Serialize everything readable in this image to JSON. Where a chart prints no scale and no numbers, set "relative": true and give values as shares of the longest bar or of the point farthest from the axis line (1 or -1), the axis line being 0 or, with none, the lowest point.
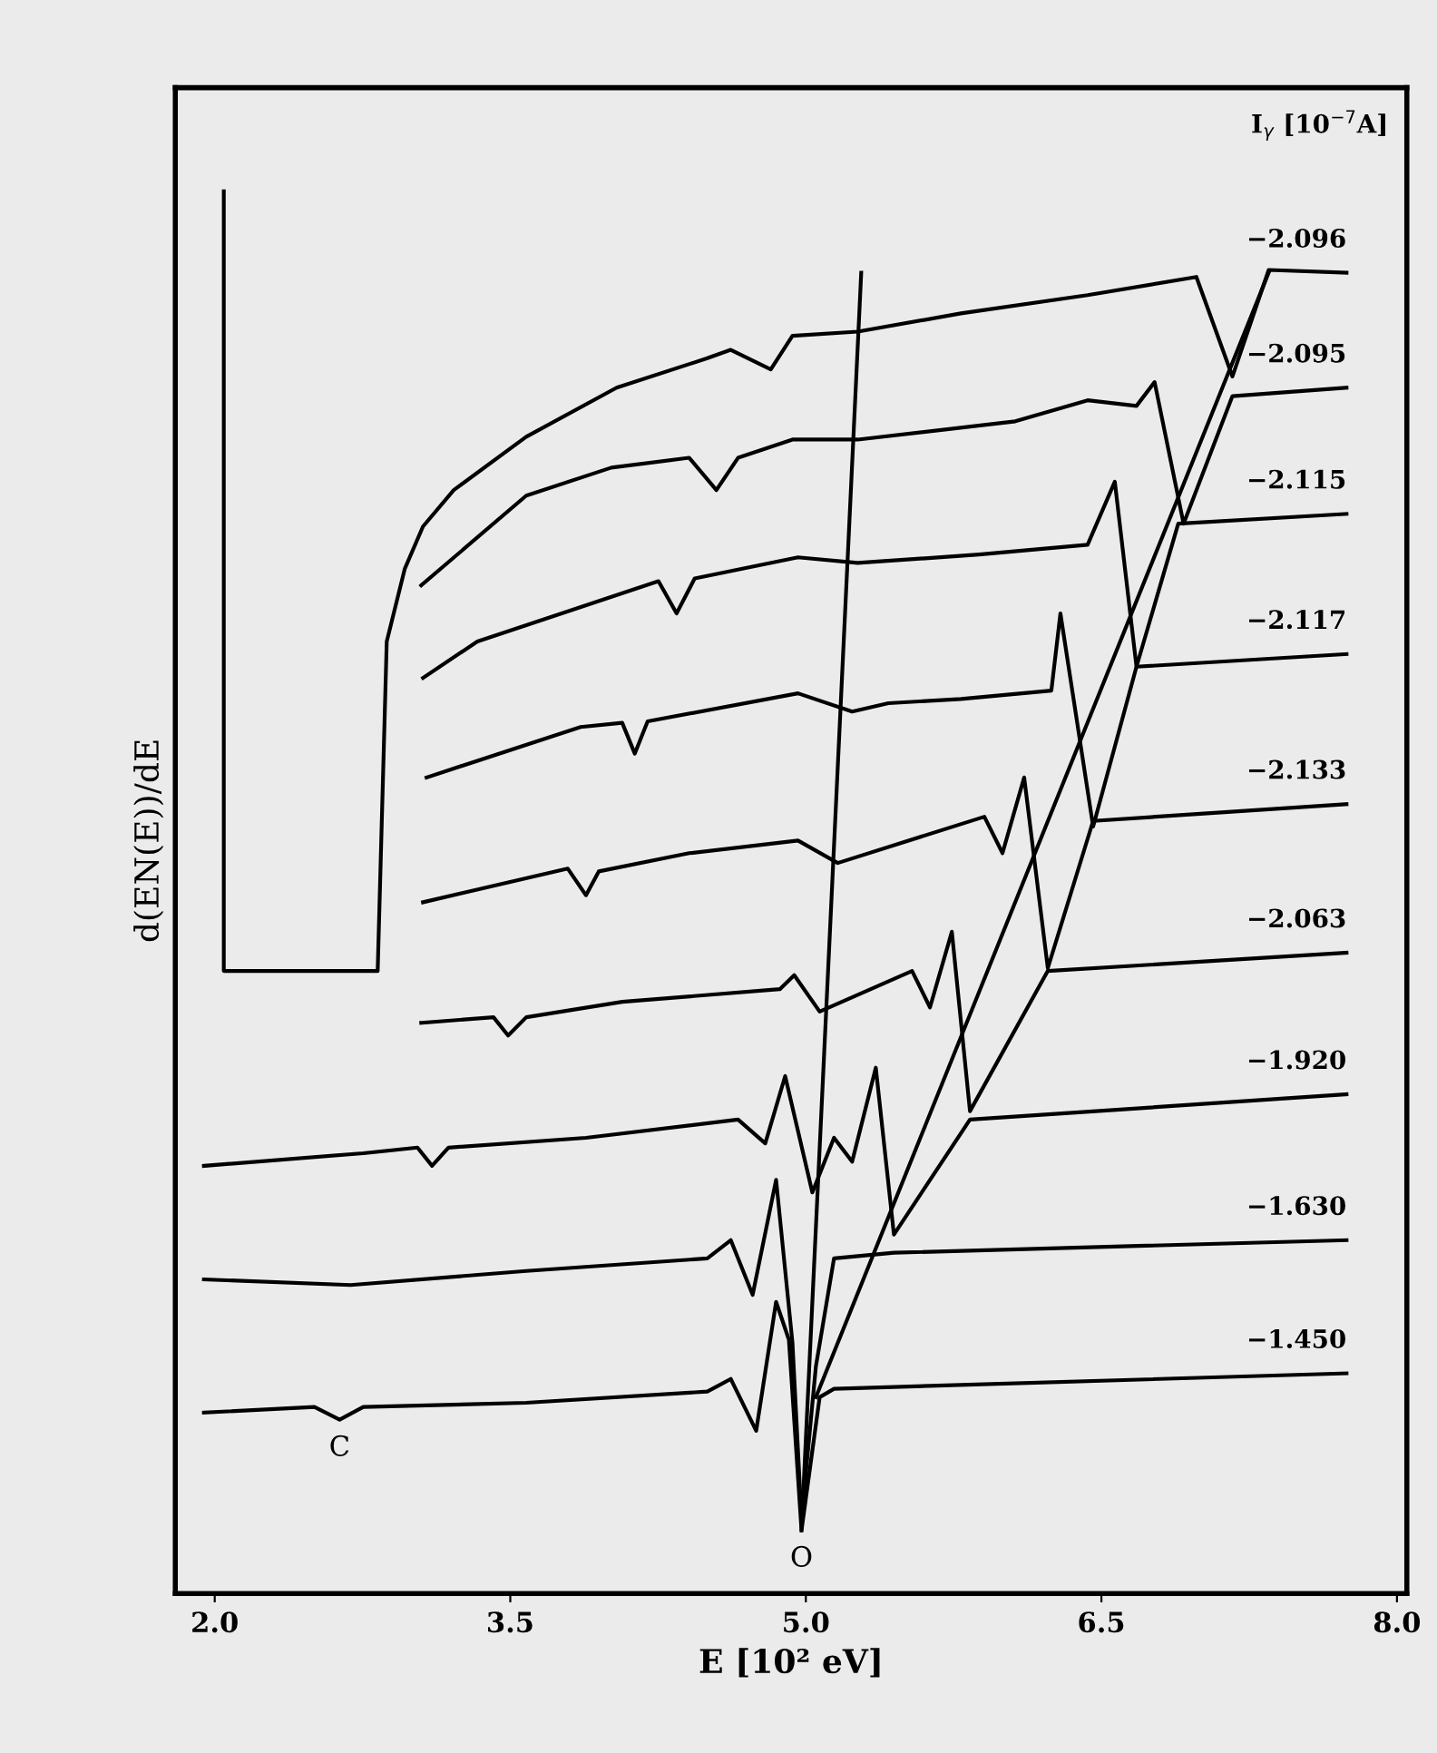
{
  "chart_data": {
    "type": "line",
    "relative": true,
    "xlabel": "E [10² eV]",
    "ylabel": "d(EN(E))/dE",
    "legend_title": "I$_{γ}$ [10$^{−7}$A]",
    "legend": false,
    "grid": false,
    "marker": "none",
    "line_style": "solid",
    "tick_labels": "x",
    "xlim": [
      1.8,
      8.05
    ],
    "xticks": [
      {
        "value": 2,
        "label": "2.0"
      },
      {
        "value": 3.5,
        "label": "3.5"
      },
      {
        "value": 5,
        "label": "5.0"
      },
      {
        "value": 6.5,
        "label": "6.5"
      },
      {
        "value": 8,
        "label": "8.0"
      }
    ],
    "series": [
      {
        "name": "−2.096",
        "color": "#000000",
        "x": [
          2.046,
          2.046,
          2.827,
          2.873,
          2.965,
          3.057,
          3.213,
          3.581,
          4.04,
          4.5,
          4.619,
          4.822,
          4.932,
          5.263,
          5.787,
          6.43,
          6.982,
          7.165,
          7.349,
          7.744
        ],
        "values": [
          1.0,
          0.444,
          0.444,
          0.679,
          0.731,
          0.761,
          0.787,
          0.825,
          0.86,
          0.881,
          0.887,
          0.873,
          0.897,
          0.9,
          0.913,
          0.926,
          0.939,
          0.868,
          0.944,
          0.942
        ]
      },
      {
        "name": "−2.095",
        "color": "#000000",
        "x": [
          3.048,
          3.581,
          4.013,
          4.408,
          4.546,
          4.656,
          4.932,
          5.263,
          6.063,
          6.43,
          6.678,
          6.77,
          6.917,
          7.165,
          7.744
        ],
        "values": [
          0.719,
          0.783,
          0.803,
          0.81,
          0.787,
          0.81,
          0.823,
          0.823,
          0.836,
          0.851,
          0.847,
          0.864,
          0.763,
          0.854,
          0.86
        ]
      },
      {
        "name": "−2.115",
        "color": "#000000",
        "x": [
          3.057,
          3.333,
          4.252,
          4.344,
          4.436,
          4.96,
          5.263,
          5.879,
          6.43,
          6.568,
          6.678,
          6.89,
          7.744
        ],
        "values": [
          0.653,
          0.679,
          0.722,
          0.699,
          0.724,
          0.739,
          0.735,
          0.741,
          0.748,
          0.793,
          0.661,
          0.763,
          0.77
        ]
      },
      {
        "name": "−2.117",
        "color": "#000000",
        "x": [
          3.075,
          3.857,
          4.068,
          4.132,
          4.197,
          4.96,
          5.235,
          5.419,
          5.787,
          6.246,
          6.292,
          6.458,
          6.678,
          7.744
        ],
        "values": [
          0.582,
          0.618,
          0.621,
          0.599,
          0.622,
          0.642,
          0.629,
          0.635,
          0.638,
          0.644,
          0.699,
          0.547,
          0.661,
          0.67
        ]
      },
      {
        "name": "−2.133",
        "color": "#000000",
        "x": [
          3.057,
          3.792,
          3.884,
          3.949,
          4.408,
          4.96,
          5.162,
          5.906,
          5.998,
          6.108,
          6.228,
          6.458,
          7.744
        ],
        "values": [
          0.493,
          0.517,
          0.498,
          0.515,
          0.528,
          0.537,
          0.521,
          0.554,
          0.528,
          0.582,
          0.446,
          0.551,
          0.563
        ]
      },
      {
        "name": "−2.063",
        "color": "#000000",
        "x": [
          3.048,
          3.415,
          3.489,
          3.581,
          4.068,
          4.868,
          4.941,
          5.07,
          5.539,
          5.63,
          5.741,
          5.833,
          6.228,
          7.744
        ],
        "values": [
          0.407,
          0.411,
          0.398,
          0.411,
          0.422,
          0.431,
          0.441,
          0.415,
          0.444,
          0.418,
          0.472,
          0.344,
          0.444,
          0.457
        ]
      },
      {
        "name": "−1.920",
        "color": "#000000",
        "x": [
          1.945,
          2.754,
          3.029,
          3.103,
          3.186,
          3.884,
          4.656,
          4.794,
          4.895,
          5.033,
          5.143,
          5.235,
          5.355,
          5.447,
          5.833,
          7.744
        ],
        "values": [
          0.305,
          0.314,
          0.318,
          0.305,
          0.318,
          0.325,
          0.338,
          0.321,
          0.369,
          0.286,
          0.325,
          0.308,
          0.375,
          0.256,
          0.338,
          0.356
        ]
      },
      {
        "name": "−1.630",
        "color": "#000000",
        "x": [
          1.945,
          2.689,
          3.581,
          4.5,
          4.619,
          4.73,
          4.849,
          4.932,
          4.978,
          5.051,
          5.143,
          5.447,
          7.744
        ],
        "values": [
          0.224,
          0.22,
          0.23,
          0.239,
          0.252,
          0.213,
          0.295,
          0.179,
          0.053,
          0.162,
          0.239,
          0.243,
          0.252
        ]
      },
      {
        "name": "−1.450",
        "color": "#000000",
        "x": [
          1.945,
          2.506,
          2.634,
          2.754,
          3.581,
          4.5,
          4.619,
          4.748,
          4.849,
          4.914,
          4.978,
          5.07,
          5.143,
          7.744
        ],
        "values": [
          0.129,
          0.133,
          0.124,
          0.133,
          0.136,
          0.144,
          0.153,
          0.116,
          0.208,
          0.181,
          0.045,
          0.14,
          0.146,
          0.157
        ]
      },
      {
        "color": "#000000",
        "x": [
          5.281,
          4.978
        ],
        "values": [
          0.942,
          0.045
        ]
      },
      {
        "color": "#000000",
        "x": [
          7.349,
          5.051
        ],
        "values": [
          0.942,
          0.14
        ]
      }
    ],
    "annotations": [
      {
        "text": "C",
        "x": 2.634,
        "y": 0.124
      },
      {
        "text": "O",
        "x": 4.978,
        "y": 0.045
      }
    ]
  }
}
